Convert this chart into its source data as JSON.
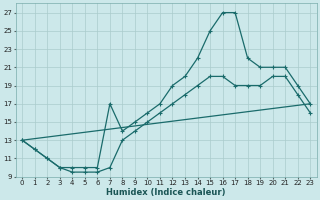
{
  "xlabel": "Humidex (Indice chaleur)",
  "background_color": "#cce8ea",
  "grid_color": "#aacccc",
  "line_color": "#1a6b6b",
  "xlim": [
    -0.5,
    23.5
  ],
  "ylim": [
    9,
    28
  ],
  "xticks": [
    0,
    1,
    2,
    3,
    4,
    5,
    6,
    7,
    8,
    9,
    10,
    11,
    12,
    13,
    14,
    15,
    16,
    17,
    18,
    19,
    20,
    21,
    22,
    23
  ],
  "yticks": [
    9,
    11,
    13,
    15,
    17,
    19,
    21,
    23,
    25,
    27
  ],
  "line1_x": [
    0,
    1,
    2,
    3,
    4,
    5,
    6,
    7,
    8,
    9,
    10,
    11,
    12,
    13,
    14,
    15,
    16,
    17,
    18,
    19,
    20,
    21,
    22,
    23
  ],
  "line1_y": [
    13,
    12,
    11,
    10,
    10,
    10,
    10,
    17,
    14,
    15,
    16,
    17,
    19,
    20,
    22,
    25,
    27,
    27,
    22,
    21,
    21,
    21,
    19,
    17
  ],
  "line2_x": [
    0,
    1,
    2,
    3,
    4,
    5,
    6,
    7,
    8,
    9,
    10,
    11,
    12,
    13,
    14,
    15,
    16,
    17,
    18,
    19,
    20,
    21,
    22,
    23
  ],
  "line2_y": [
    13,
    12,
    11,
    10,
    9.5,
    9.5,
    9.5,
    10,
    13,
    14,
    15,
    16,
    17,
    18,
    19,
    20,
    20,
    19,
    19,
    19,
    20,
    20,
    18,
    16
  ],
  "line3_x": [
    0,
    23
  ],
  "line3_y": [
    13,
    17
  ]
}
